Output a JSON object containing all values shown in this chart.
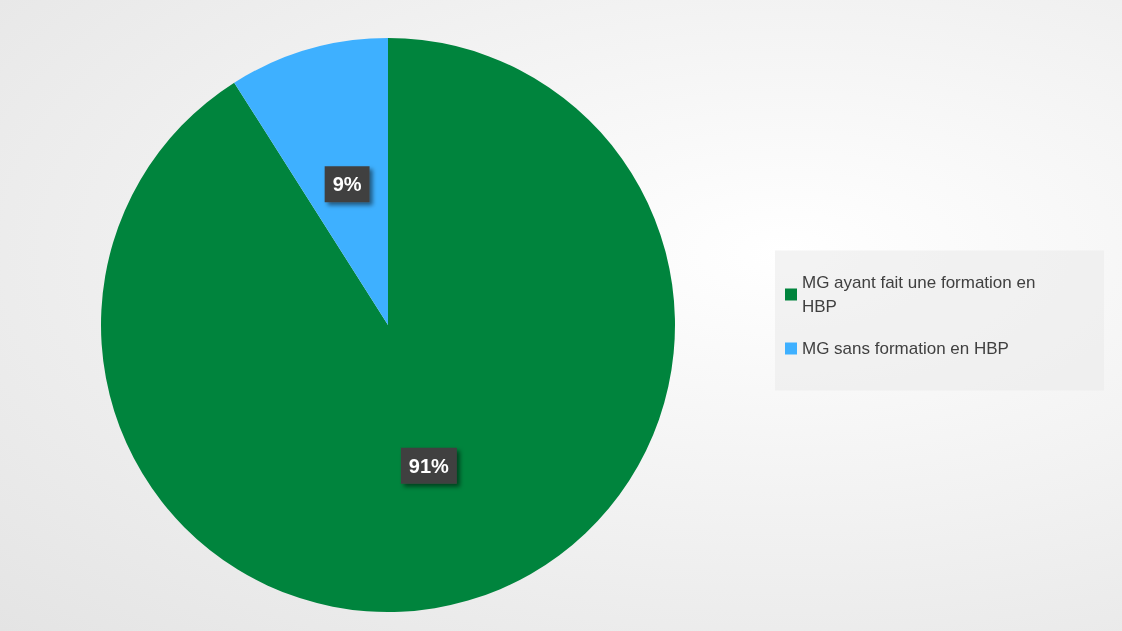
{
  "chart_data": {
    "type": "pie",
    "categories": [
      "MG ayant fait une formation en HBP",
      "MG sans formation en HBP"
    ],
    "values": [
      91,
      9
    ],
    "colors": [
      "#00843d",
      "#3eb0ff"
    ],
    "value_labels": [
      "91%",
      "9%"
    ],
    "legend": "right"
  }
}
